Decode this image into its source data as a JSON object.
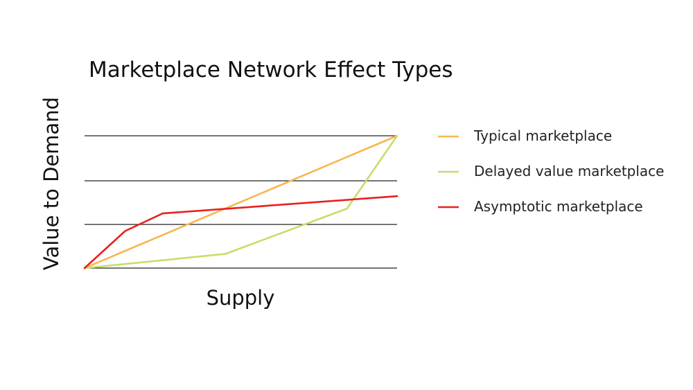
{
  "chart_data": {
    "type": "line",
    "title": "Marketplace Network Effect Types",
    "xlabel": "Supply",
    "ylabel": "Value to Demand",
    "xlim": [
      0,
      10
    ],
    "ylim": [
      0,
      3
    ],
    "grid": true,
    "gridlines_y": [
      0,
      1,
      2,
      3
    ],
    "legend_position": "right",
    "series": [
      {
        "name": "Typical marketplace",
        "color": "#F7B64F",
        "x": [
          0,
          10
        ],
        "y": [
          0,
          3
        ]
      },
      {
        "name": "Delayed value marketplace",
        "color": "#C5DE6A",
        "x": [
          0,
          4.5,
          8.4,
          10
        ],
        "y": [
          0,
          0.32,
          1.35,
          3
        ]
      },
      {
        "name": "Asymptotic marketplace",
        "color": "#E8201E",
        "x": [
          0,
          1.3,
          2.5,
          10
        ],
        "y": [
          0,
          0.84,
          1.24,
          1.63
        ]
      }
    ]
  }
}
